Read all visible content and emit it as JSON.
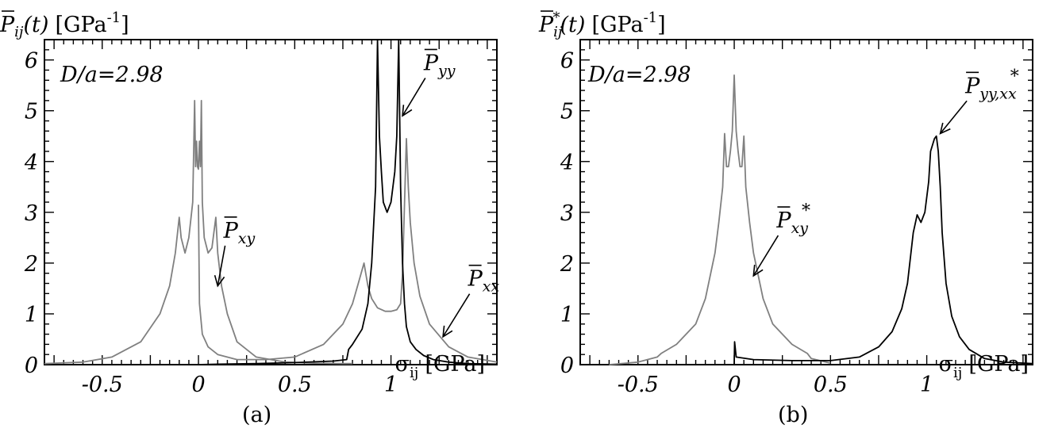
{
  "chart_data": [
    {
      "type": "line",
      "panel_label": "(a)",
      "ylabel_main": "P",
      "ylabel_sub": "ij",
      "ylabel_arg": "(t)",
      "ylabel_unit": "[GPa",
      "ylabel_exp": "-1",
      "ylabel_close": "]",
      "xlabel_sym": "σ",
      "xlabel_sub": "ij",
      "xlabel_unit": "[GPa]",
      "annotation": "D/a=2.98",
      "xlim": [
        -0.8,
        1.55
      ],
      "ylim": [
        0,
        6.4
      ],
      "xticks": [
        -0.5,
        0,
        0.5,
        1
      ],
      "xtick_labels": [
        "-0.5",
        "0",
        "0.5",
        "1"
      ],
      "yticks": [
        0,
        1,
        2,
        3,
        4,
        5,
        6
      ],
      "ytick_labels": [
        "0",
        "1",
        "2",
        "3",
        "4",
        "5",
        "6"
      ],
      "series": [
        {
          "name": "P_xy",
          "label_main": "P",
          "label_sub": "xy",
          "label_sup": "",
          "color": "#808080",
          "x": [
            -0.8,
            -0.6,
            -0.45,
            -0.3,
            -0.2,
            -0.15,
            -0.12,
            -0.1,
            -0.09,
            -0.07,
            -0.05,
            -0.03,
            -0.02,
            -0.015,
            -0.01,
            -0.005,
            0,
            0.005,
            0.01,
            0.015,
            0.02,
            0.03,
            0.05,
            0.07,
            0.09,
            0.1,
            0.12,
            0.15,
            0.2,
            0.3,
            0.45,
            0.6,
            0.75,
            0.8
          ],
          "y": [
            0.02,
            0.05,
            0.15,
            0.45,
            1.0,
            1.55,
            2.2,
            2.9,
            2.5,
            2.2,
            2.5,
            3.2,
            5.2,
            3.9,
            4.4,
            3.9,
            3.85,
            4.4,
            3.9,
            5.2,
            3.2,
            2.5,
            2.2,
            2.3,
            2.9,
            2.2,
            1.55,
            1.0,
            0.45,
            0.15,
            0.05,
            0.03,
            0.02,
            0.02
          ]
        },
        {
          "name": "P_xx",
          "label_main": "P",
          "label_sub": "xx",
          "label_sup": "",
          "color": "#808080",
          "x": [
            0,
            0.005,
            0.02,
            0.05,
            0.1,
            0.2,
            0.35,
            0.5,
            0.65,
            0.75,
            0.8,
            0.83,
            0.86,
            0.88,
            0.9,
            0.93,
            0.97,
            1.0,
            1.03,
            1.05,
            1.06,
            1.08,
            1.09,
            1.1,
            1.12,
            1.15,
            1.2,
            1.3,
            1.4,
            1.55
          ],
          "y": [
            3.15,
            1.2,
            0.6,
            0.35,
            0.2,
            0.1,
            0.1,
            0.15,
            0.4,
            0.8,
            1.2,
            1.6,
            2.0,
            1.55,
            1.3,
            1.12,
            1.05,
            1.05,
            1.08,
            1.2,
            1.8,
            4.45,
            3.5,
            2.8,
            2.0,
            1.35,
            0.8,
            0.35,
            0.15,
            0.05
          ]
        },
        {
          "name": "P_yy",
          "label_main": "P",
          "label_sub": "yy",
          "label_sup": "",
          "color": "#000000",
          "x": [
            0,
            0.1,
            0.3,
            0.5,
            0.7,
            0.77,
            0.78,
            0.8,
            0.85,
            0.88,
            0.9,
            0.92,
            0.93,
            0.94,
            0.95,
            0.96,
            0.98,
            1.0,
            1.02,
            1.03,
            1.04,
            1.05,
            1.06,
            1.07,
            1.08,
            1.1,
            1.13,
            1.17,
            1.22,
            1.3,
            1.4,
            1.55
          ],
          "y": [
            0.0,
            0.01,
            0.02,
            0.04,
            0.07,
            0.1,
            0.3,
            0.4,
            0.7,
            1.2,
            2.0,
            3.5,
            6.4,
            4.5,
            3.8,
            3.2,
            3.0,
            3.2,
            3.8,
            4.5,
            6.4,
            3.5,
            2.0,
            1.2,
            0.75,
            0.45,
            0.3,
            0.18,
            0.1,
            0.05,
            0.02,
            0.01
          ]
        }
      ],
      "annotations": [
        {
          "series": "P_xy",
          "label_at": [
            0.13,
            2.5
          ],
          "arrow_to": [
            0.1,
            1.55
          ]
        },
        {
          "series": "P_yy",
          "label_at": [
            1.17,
            5.8
          ],
          "arrow_to": [
            1.06,
            4.9
          ]
        },
        {
          "series": "P_xx",
          "label_at": [
            1.4,
            1.55
          ],
          "arrow_to": [
            1.27,
            0.55
          ]
        }
      ]
    },
    {
      "type": "line",
      "panel_label": "(b)",
      "ylabel_main": "P",
      "ylabel_sub": "ij",
      "ylabel_sup": "*",
      "ylabel_arg": "(t)",
      "ylabel_unit": "[GPa",
      "ylabel_exp": "-1",
      "ylabel_close": "]",
      "xlabel_sym": "σ",
      "xlabel_sub": "ij",
      "xlabel_unit": "[GPa]",
      "annotation": "D/a=2.98",
      "xlim": [
        -0.8,
        1.55
      ],
      "ylim": [
        0,
        6.4
      ],
      "xticks": [
        -0.5,
        0,
        0.5,
        1
      ],
      "xtick_labels": [
        "-0.5",
        "0",
        "0.5",
        "1"
      ],
      "yticks": [
        0,
        1,
        2,
        3,
        4,
        5,
        6
      ],
      "ytick_labels": [
        "0",
        "1",
        "2",
        "3",
        "4",
        "5",
        "6"
      ],
      "series": [
        {
          "name": "P_xy*",
          "label_main": "P",
          "label_sub": "xy",
          "label_sup": "*",
          "color": "#808080",
          "x": [
            -0.65,
            -0.5,
            -0.4,
            -0.38,
            -0.3,
            -0.2,
            -0.15,
            -0.1,
            -0.08,
            -0.06,
            -0.05,
            -0.04,
            -0.03,
            -0.02,
            -0.01,
            0,
            0.01,
            0.02,
            0.03,
            0.04,
            0.05,
            0.06,
            0.08,
            0.1,
            0.15,
            0.2,
            0.3,
            0.38,
            0.4,
            0.5
          ],
          "y": [
            0.0,
            0.05,
            0.15,
            0.22,
            0.4,
            0.8,
            1.3,
            2.2,
            2.8,
            3.5,
            4.55,
            3.9,
            3.9,
            4.2,
            4.6,
            5.7,
            4.6,
            4.2,
            3.9,
            3.9,
            4.5,
            3.5,
            2.8,
            2.2,
            1.3,
            0.8,
            0.4,
            0.22,
            0.12,
            0.03
          ]
        },
        {
          "name": "P_yy,xx*",
          "label_main": "P",
          "label_sub": "yy,xx",
          "label_sup": "*",
          "color": "#000000",
          "x": [
            0,
            0.002,
            0.01,
            0.1,
            0.3,
            0.5,
            0.65,
            0.75,
            0.82,
            0.87,
            0.9,
            0.93,
            0.95,
            0.97,
            0.99,
            1.01,
            1.02,
            1.04,
            1.05,
            1.06,
            1.07,
            1.08,
            1.1,
            1.13,
            1.17,
            1.22,
            1.3,
            1.4,
            1.55
          ],
          "y": [
            0.0,
            0.45,
            0.15,
            0.1,
            0.08,
            0.08,
            0.15,
            0.35,
            0.65,
            1.1,
            1.6,
            2.6,
            2.95,
            2.8,
            3.0,
            3.6,
            4.2,
            4.45,
            4.5,
            4.2,
            3.5,
            2.6,
            1.6,
            0.95,
            0.55,
            0.3,
            0.12,
            0.05,
            0.02
          ]
        }
      ],
      "annotations": [
        {
          "series": "P_xy*",
          "label_at": [
            0.22,
            2.7
          ],
          "arrow_to": [
            0.1,
            1.75
          ]
        },
        {
          "series": "P_yy,xx*",
          "label_at": [
            1.2,
            5.35
          ],
          "arrow_to": [
            1.07,
            4.55
          ]
        }
      ]
    }
  ]
}
